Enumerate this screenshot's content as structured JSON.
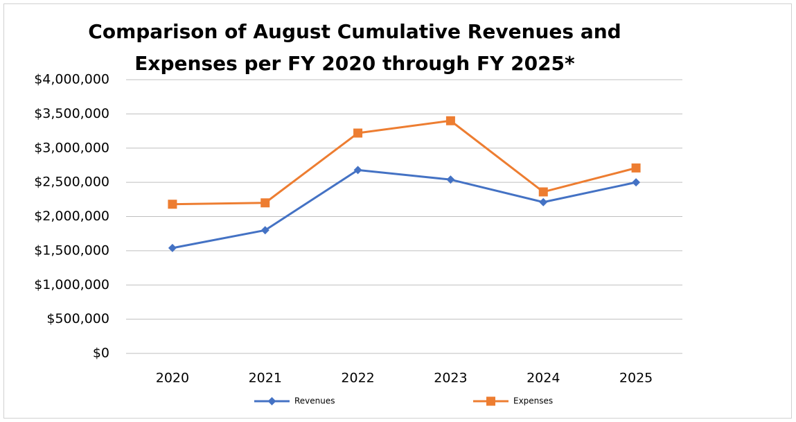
{
  "chart_data": {
    "type": "line",
    "title": [
      "Comparison of August Cumulative Revenues and",
      "Expenses per FY 2020 through FY 2025*"
    ],
    "categories": [
      "2020",
      "2021",
      "2022",
      "2023",
      "2024",
      "2025"
    ],
    "series": [
      {
        "name": "Revenues",
        "color": "#4472c4",
        "marker": "diamond",
        "values": [
          1540000,
          1800000,
          2680000,
          2540000,
          2210000,
          2500000
        ]
      },
      {
        "name": "Expenses",
        "color": "#ed7d31",
        "marker": "square",
        "values": [
          2180000,
          2200000,
          3220000,
          3400000,
          2360000,
          2710000
        ]
      }
    ],
    "ylim": [
      0,
      4000000
    ],
    "yticks": [
      {
        "value": 0,
        "label": "$0"
      },
      {
        "value": 500000,
        "label": "$500,000"
      },
      {
        "value": 1000000,
        "label": "$1,000,000"
      },
      {
        "value": 1500000,
        "label": "$1,500,000"
      },
      {
        "value": 2000000,
        "label": "$2,000,000"
      },
      {
        "value": 2500000,
        "label": "$2,500,000"
      },
      {
        "value": 3000000,
        "label": "$3,000,000"
      },
      {
        "value": 3500000,
        "label": "$3,500,000"
      },
      {
        "value": 4000000,
        "label": "$4,000,000"
      }
    ],
    "grid": true,
    "legend": "bottom"
  }
}
